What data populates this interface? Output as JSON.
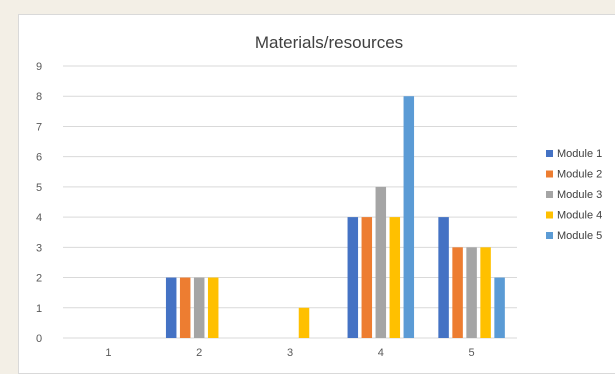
{
  "chart_data": {
    "type": "bar",
    "title": "Materials/resources",
    "xlabel": "",
    "ylabel": "",
    "categories": [
      "1",
      "2",
      "3",
      "4",
      "5"
    ],
    "ylim": [
      0,
      9
    ],
    "yticks": [
      0,
      1,
      2,
      3,
      4,
      5,
      6,
      7,
      8,
      9
    ],
    "grid": true,
    "legend_position": "right",
    "series": [
      {
        "name": "Module 1",
        "color": "#4472c4",
        "values": [
          0,
          2,
          0,
          4,
          4
        ]
      },
      {
        "name": "Module 2",
        "color": "#ed7d31",
        "values": [
          0,
          2,
          0,
          4,
          3
        ]
      },
      {
        "name": "Module 3",
        "color": "#a5a5a5",
        "values": [
          0,
          2,
          0,
          5,
          3
        ]
      },
      {
        "name": "Module 4",
        "color": "#ffc000",
        "values": [
          0,
          2,
          1,
          4,
          3
        ]
      },
      {
        "name": "Module 5",
        "color": "#5b9bd5",
        "values": [
          0,
          0,
          0,
          8,
          2
        ]
      }
    ]
  }
}
